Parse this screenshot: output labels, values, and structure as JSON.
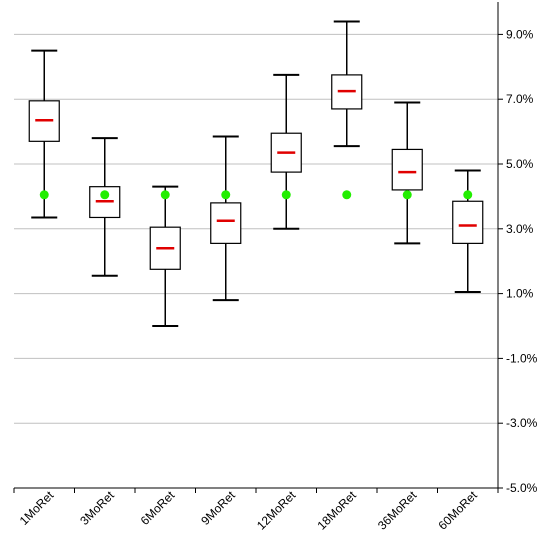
{
  "chart_data": {
    "type": "box",
    "categories": [
      "1MoRet",
      "3MoRet",
      "6MoRet",
      "9MoRet",
      "12MoRet",
      "18MoRet",
      "36MoRet",
      "60MoRet"
    ],
    "boxes": [
      {
        "category": "1MoRet",
        "min": 3.35,
        "q1": 5.7,
        "median": 6.35,
        "q3": 6.95,
        "max": 8.5,
        "marker": 4.05
      },
      {
        "category": "3MoRet",
        "min": 1.55,
        "q1": 3.35,
        "median": 3.85,
        "q3": 4.3,
        "max": 5.8,
        "marker": 4.05
      },
      {
        "category": "6MoRet",
        "min": 0.0,
        "q1": 1.75,
        "median": 2.4,
        "q3": 3.05,
        "max": 4.3,
        "marker": 4.05
      },
      {
        "category": "9MoRet",
        "min": 0.8,
        "q1": 2.55,
        "median": 3.25,
        "q3": 3.8,
        "max": 5.85,
        "marker": 4.05
      },
      {
        "category": "12MoRet",
        "min": 3.0,
        "q1": 4.75,
        "median": 5.35,
        "q3": 5.95,
        "max": 7.75,
        "marker": 4.05
      },
      {
        "category": "18MoRet",
        "min": 5.55,
        "q1": 6.7,
        "median": 7.25,
        "q3": 7.75,
        "max": 9.4,
        "marker": 4.05
      },
      {
        "category": "36MoRet",
        "min": 2.55,
        "q1": 4.2,
        "median": 4.75,
        "q3": 5.45,
        "max": 6.9,
        "marker": 4.05
      },
      {
        "category": "60MoRet",
        "min": 1.05,
        "q1": 2.55,
        "median": 3.1,
        "q3": 3.85,
        "max": 4.8,
        "marker": 4.05
      }
    ],
    "yticks": [
      9.0,
      7.0,
      5.0,
      3.0,
      1.0,
      -1.0,
      -3.0,
      -5.0
    ],
    "ytick_labels": [
      "9.0%",
      "7.0%",
      "5.0%",
      "3.0%",
      "1.0%",
      "-1.0%",
      "-3.0%",
      "-5.0%"
    ],
    "ylim": [
      -5.0,
      10.0
    ],
    "y_axis_position": "right",
    "grid": true,
    "median_color": "#e00000",
    "marker_color": "#22ee00",
    "box_color": "#000000",
    "grid_color": "#c0c0c0"
  }
}
